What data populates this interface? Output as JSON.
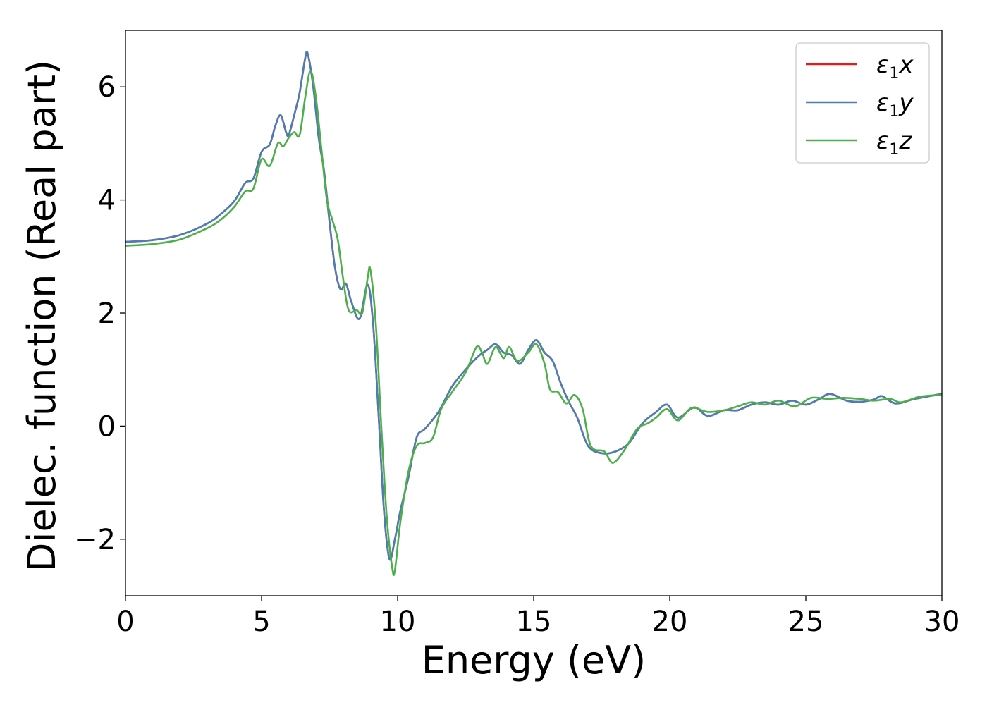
{
  "chart_data": {
    "type": "line",
    "title": "",
    "xlabel": "Energy (eV)",
    "ylabel": "Dielec. function (Real part)",
    "xlim": [
      0,
      30
    ],
    "ylim": [
      -3,
      7
    ],
    "xticks": [
      0,
      5,
      10,
      15,
      20,
      25,
      30
    ],
    "yticks": [
      -2,
      0,
      2,
      4,
      6
    ],
    "xtick_labels": [
      "0",
      "5",
      "10",
      "15",
      "20",
      "25",
      "30"
    ],
    "ytick_labels": [
      "−2",
      "0",
      "2",
      "4",
      "6"
    ],
    "grid": false,
    "legend_position": "top-right",
    "series": [
      {
        "name": "ε1x",
        "legend": {
          "base": "ε",
          "sub": "1",
          "var": "x"
        },
        "color": "#e41a1c",
        "points": [
          [
            0,
            3.26
          ],
          [
            1,
            3.29
          ],
          [
            2,
            3.38
          ],
          [
            3,
            3.58
          ],
          [
            3.5,
            3.75
          ],
          [
            4,
            3.98
          ],
          [
            4.4,
            4.3
          ],
          [
            4.7,
            4.38
          ],
          [
            5,
            4.85
          ],
          [
            5.3,
            4.98
          ],
          [
            5.5,
            5.3
          ],
          [
            5.7,
            5.5
          ],
          [
            5.9,
            5.2
          ],
          [
            6.0,
            5.15
          ],
          [
            6.2,
            5.5
          ],
          [
            6.4,
            5.9
          ],
          [
            6.6,
            6.5
          ],
          [
            6.7,
            6.58
          ],
          [
            6.9,
            6.0
          ],
          [
            7.1,
            5.1
          ],
          [
            7.3,
            4.5
          ],
          [
            7.5,
            3.6
          ],
          [
            7.7,
            2.8
          ],
          [
            7.9,
            2.42
          ],
          [
            8.1,
            2.52
          ],
          [
            8.3,
            2.2
          ],
          [
            8.6,
            1.9
          ],
          [
            8.9,
            2.5
          ],
          [
            9.1,
            1.8
          ],
          [
            9.3,
            0.2
          ],
          [
            9.5,
            -1.5
          ],
          [
            9.7,
            -2.35
          ],
          [
            9.9,
            -2.0
          ],
          [
            10.1,
            -1.5
          ],
          [
            10.4,
            -0.9
          ],
          [
            10.7,
            -0.2
          ],
          [
            11.0,
            -0.05
          ],
          [
            11.5,
            0.25
          ],
          [
            12.0,
            0.7
          ],
          [
            12.5,
            1.0
          ],
          [
            13.0,
            1.25
          ],
          [
            13.3,
            1.35
          ],
          [
            13.6,
            1.45
          ],
          [
            13.9,
            1.3
          ],
          [
            14.2,
            1.25
          ],
          [
            14.5,
            1.1
          ],
          [
            14.8,
            1.35
          ],
          [
            15.1,
            1.52
          ],
          [
            15.4,
            1.3
          ],
          [
            15.7,
            1.15
          ],
          [
            16.0,
            0.75
          ],
          [
            16.3,
            0.42
          ],
          [
            16.6,
            0.15
          ],
          [
            17.0,
            -0.35
          ],
          [
            17.5,
            -0.48
          ],
          [
            18.0,
            -0.45
          ],
          [
            18.5,
            -0.3
          ],
          [
            19.0,
            0.05
          ],
          [
            19.5,
            0.25
          ],
          [
            19.9,
            0.38
          ],
          [
            20.3,
            0.15
          ],
          [
            20.9,
            0.33
          ],
          [
            21.4,
            0.18
          ],
          [
            22.0,
            0.28
          ],
          [
            22.5,
            0.28
          ],
          [
            23.0,
            0.38
          ],
          [
            23.5,
            0.42
          ],
          [
            24.0,
            0.38
          ],
          [
            24.5,
            0.45
          ],
          [
            25.0,
            0.38
          ],
          [
            25.5,
            0.48
          ],
          [
            25.9,
            0.57
          ],
          [
            26.5,
            0.45
          ],
          [
            27.0,
            0.43
          ],
          [
            27.5,
            0.47
          ],
          [
            27.8,
            0.53
          ],
          [
            28.3,
            0.4
          ],
          [
            29.0,
            0.48
          ],
          [
            30.0,
            0.57
          ]
        ]
      },
      {
        "name": "ε1y",
        "legend": {
          "base": "ε",
          "sub": "1",
          "var": "y"
        },
        "color": "#4a7eb4",
        "points": [
          [
            0,
            3.26
          ],
          [
            1,
            3.29
          ],
          [
            2,
            3.38
          ],
          [
            3,
            3.58
          ],
          [
            3.5,
            3.75
          ],
          [
            4,
            3.98
          ],
          [
            4.4,
            4.3
          ],
          [
            4.7,
            4.38
          ],
          [
            5,
            4.85
          ],
          [
            5.3,
            4.98
          ],
          [
            5.5,
            5.3
          ],
          [
            5.7,
            5.5
          ],
          [
            5.9,
            5.2
          ],
          [
            6.0,
            5.15
          ],
          [
            6.2,
            5.5
          ],
          [
            6.4,
            5.9
          ],
          [
            6.6,
            6.5
          ],
          [
            6.7,
            6.58
          ],
          [
            6.9,
            6.0
          ],
          [
            7.1,
            5.1
          ],
          [
            7.3,
            4.5
          ],
          [
            7.5,
            3.6
          ],
          [
            7.7,
            2.8
          ],
          [
            7.9,
            2.42
          ],
          [
            8.1,
            2.52
          ],
          [
            8.3,
            2.2
          ],
          [
            8.6,
            1.9
          ],
          [
            8.9,
            2.5
          ],
          [
            9.1,
            1.8
          ],
          [
            9.3,
            0.2
          ],
          [
            9.5,
            -1.5
          ],
          [
            9.7,
            -2.35
          ],
          [
            9.9,
            -2.0
          ],
          [
            10.1,
            -1.5
          ],
          [
            10.4,
            -0.9
          ],
          [
            10.7,
            -0.2
          ],
          [
            11.0,
            -0.05
          ],
          [
            11.5,
            0.25
          ],
          [
            12.0,
            0.7
          ],
          [
            12.5,
            1.0
          ],
          [
            13.0,
            1.25
          ],
          [
            13.3,
            1.35
          ],
          [
            13.6,
            1.45
          ],
          [
            13.9,
            1.3
          ],
          [
            14.2,
            1.25
          ],
          [
            14.5,
            1.1
          ],
          [
            14.8,
            1.35
          ],
          [
            15.1,
            1.52
          ],
          [
            15.4,
            1.3
          ],
          [
            15.7,
            1.15
          ],
          [
            16.0,
            0.75
          ],
          [
            16.3,
            0.42
          ],
          [
            16.6,
            0.15
          ],
          [
            17.0,
            -0.35
          ],
          [
            17.5,
            -0.48
          ],
          [
            18.0,
            -0.45
          ],
          [
            18.5,
            -0.3
          ],
          [
            19.0,
            0.05
          ],
          [
            19.5,
            0.25
          ],
          [
            19.9,
            0.38
          ],
          [
            20.3,
            0.15
          ],
          [
            20.9,
            0.33
          ],
          [
            21.4,
            0.18
          ],
          [
            22.0,
            0.28
          ],
          [
            22.5,
            0.28
          ],
          [
            23.0,
            0.38
          ],
          [
            23.5,
            0.42
          ],
          [
            24.0,
            0.38
          ],
          [
            24.5,
            0.45
          ],
          [
            25.0,
            0.38
          ],
          [
            25.5,
            0.48
          ],
          [
            25.9,
            0.57
          ],
          [
            26.5,
            0.45
          ],
          [
            27.0,
            0.43
          ],
          [
            27.5,
            0.47
          ],
          [
            27.8,
            0.53
          ],
          [
            28.3,
            0.4
          ],
          [
            29.0,
            0.48
          ],
          [
            30.0,
            0.57
          ]
        ]
      },
      {
        "name": "ε1z",
        "legend": {
          "base": "ε",
          "sub": "1",
          "var": "z"
        },
        "color": "#4daf4a",
        "points": [
          [
            0,
            3.19
          ],
          [
            1,
            3.22
          ],
          [
            2,
            3.3
          ],
          [
            3,
            3.5
          ],
          [
            3.5,
            3.65
          ],
          [
            4,
            3.88
          ],
          [
            4.4,
            4.15
          ],
          [
            4.7,
            4.2
          ],
          [
            5,
            4.72
          ],
          [
            5.3,
            4.6
          ],
          [
            5.6,
            5.0
          ],
          [
            5.8,
            4.95
          ],
          [
            6.0,
            5.1
          ],
          [
            6.2,
            5.2
          ],
          [
            6.4,
            5.15
          ],
          [
            6.6,
            5.8
          ],
          [
            6.8,
            6.28
          ],
          [
            7.0,
            5.8
          ],
          [
            7.2,
            4.9
          ],
          [
            7.4,
            4.0
          ],
          [
            7.6,
            3.65
          ],
          [
            7.8,
            3.3
          ],
          [
            8.0,
            2.6
          ],
          [
            8.2,
            2.05
          ],
          [
            8.5,
            2.05
          ],
          [
            8.7,
            2.0
          ],
          [
            8.9,
            2.62
          ],
          [
            9.0,
            2.76
          ],
          [
            9.2,
            1.8
          ],
          [
            9.4,
            0.0
          ],
          [
            9.6,
            -1.6
          ],
          [
            9.8,
            -2.5
          ],
          [
            9.9,
            -2.55
          ],
          [
            10.1,
            -1.7
          ],
          [
            10.4,
            -0.8
          ],
          [
            10.7,
            -0.35
          ],
          [
            11.0,
            -0.3
          ],
          [
            11.3,
            -0.2
          ],
          [
            11.6,
            0.3
          ],
          [
            12.0,
            0.6
          ],
          [
            12.5,
            0.95
          ],
          [
            12.9,
            1.4
          ],
          [
            13.1,
            1.3
          ],
          [
            13.3,
            1.1
          ],
          [
            13.6,
            1.4
          ],
          [
            13.9,
            1.2
          ],
          [
            14.1,
            1.4
          ],
          [
            14.4,
            1.15
          ],
          [
            14.8,
            1.3
          ],
          [
            15.1,
            1.45
          ],
          [
            15.4,
            1.1
          ],
          [
            15.6,
            0.65
          ],
          [
            15.9,
            0.6
          ],
          [
            16.2,
            0.4
          ],
          [
            16.5,
            0.55
          ],
          [
            16.8,
            0.3
          ],
          [
            17.1,
            -0.35
          ],
          [
            17.6,
            -0.45
          ],
          [
            17.9,
            -0.65
          ],
          [
            18.3,
            -0.45
          ],
          [
            18.8,
            -0.05
          ],
          [
            19.2,
            0.05
          ],
          [
            19.5,
            0.15
          ],
          [
            19.9,
            0.3
          ],
          [
            20.3,
            0.1
          ],
          [
            20.8,
            0.32
          ],
          [
            21.4,
            0.25
          ],
          [
            22.0,
            0.28
          ],
          [
            22.5,
            0.35
          ],
          [
            23.0,
            0.42
          ],
          [
            23.5,
            0.38
          ],
          [
            24.0,
            0.45
          ],
          [
            24.6,
            0.35
          ],
          [
            25.2,
            0.5
          ],
          [
            25.8,
            0.48
          ],
          [
            26.4,
            0.5
          ],
          [
            27.0,
            0.48
          ],
          [
            27.5,
            0.45
          ],
          [
            28.1,
            0.48
          ],
          [
            28.5,
            0.42
          ],
          [
            29.2,
            0.52
          ],
          [
            30.0,
            0.55
          ]
        ]
      }
    ]
  },
  "colors": {
    "axis": "#000000",
    "legend_border": "#cccccc"
  }
}
